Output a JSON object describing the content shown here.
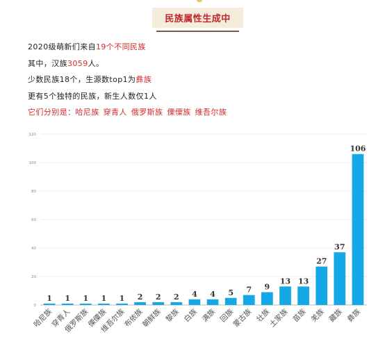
{
  "header": {
    "title": "民族属性生成中"
  },
  "intro": {
    "line1": {
      "prefix": "2020级萌新们来自",
      "highlight": "19个不同民族"
    },
    "line2": {
      "prefix": "其中，汉族",
      "highlight": "3059",
      "suffix": "人。"
    },
    "line3": {
      "prefix": "少数民族18个，生源数top1为",
      "highlight": "彝族"
    },
    "line4": {
      "text": "更有5个独特的民族，新生人数仅1人"
    },
    "line5": {
      "prefix": "它们分别是：",
      "items": [
        "哈尼族",
        "穿青人",
        "俄罗斯族",
        "傈僳族",
        "维吾尔族"
      ]
    }
  },
  "colors": {
    "bar": "#14a9e6",
    "accent": "#d32a2a",
    "title_bg": "#f5ecdc"
  },
  "chart_data": {
    "type": "bar",
    "categories": [
      "哈尼族",
      "穿青人",
      "俄罗斯族",
      "傈僳族",
      "维吾尔族",
      "布依族",
      "朝鲜族",
      "黎族",
      "白族",
      "满族",
      "回族",
      "蒙古族",
      "壮族",
      "土家族",
      "苗族",
      "羌族",
      "藏族",
      "彝族"
    ],
    "values": [
      1,
      1,
      1,
      1,
      1,
      2,
      2,
      2,
      4,
      4,
      5,
      7,
      9,
      13,
      13,
      27,
      37,
      106
    ],
    "yticks": [
      0,
      20,
      40,
      60,
      80,
      100,
      120
    ],
    "ylim": [
      0,
      120
    ],
    "grid": true,
    "data_labels": true
  }
}
